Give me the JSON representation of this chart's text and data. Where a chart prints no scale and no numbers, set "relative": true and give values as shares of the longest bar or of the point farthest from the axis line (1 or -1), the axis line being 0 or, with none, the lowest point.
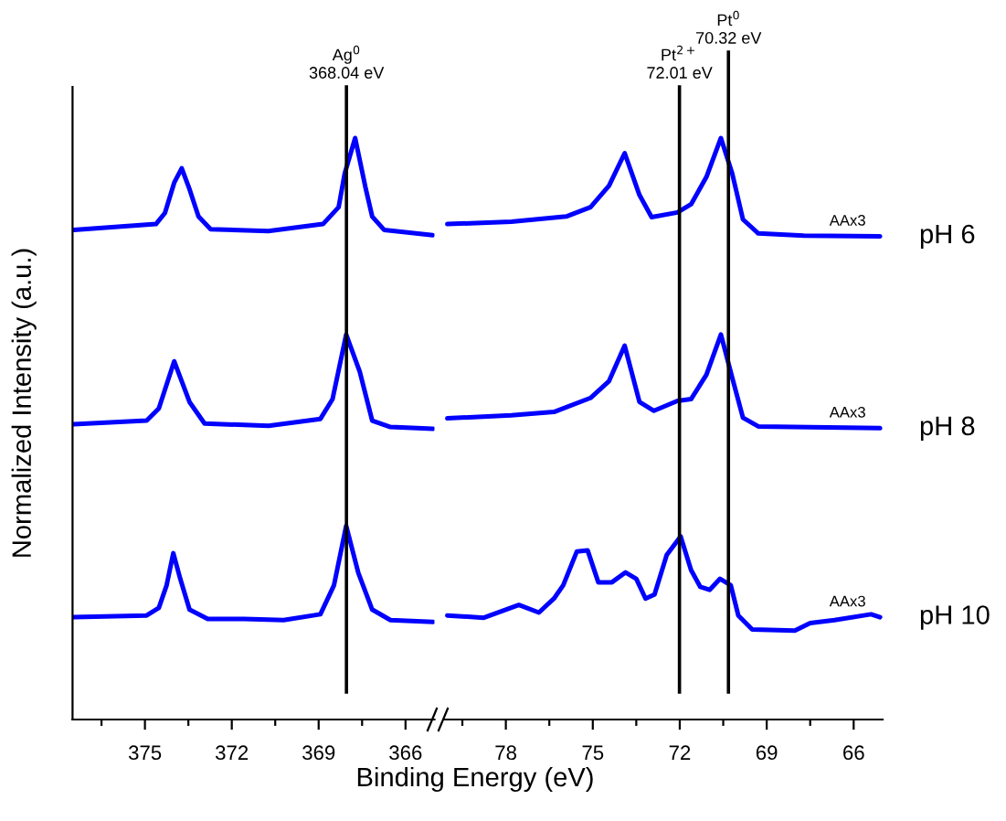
{
  "chart_data": [
    {
      "type": "line",
      "relative": true,
      "ylabel": "Normalized Intensity (a.u.)",
      "xlabel": "Binding Energy (eV)",
      "xlim": [
        377.5,
        365.0
      ],
      "xticks": [
        {
          "value": 376.5,
          "label": null
        },
        375,
        {
          "value": 373.5,
          "label": null
        },
        372,
        {
          "value": 370.5,
          "label": null
        },
        369,
        {
          "value": 367.5,
          "label": null
        },
        366
      ],
      "tick_labels": "x",
      "line_style": "solid",
      "legend": false,
      "grid": false,
      "ref_lines": [
        {
          "axis": "x",
          "value": 368.04,
          "label": "Ag$^{0}$\n368.04 eV",
          "color": "#000000"
        }
      ],
      "series": [
        {
          "color": "#0000ff",
          "x": [
            377.46,
            374.62,
            374.31,
            373.99,
            373.73,
            373.46,
            373.15,
            372.73,
            370.74,
            368.85,
            368.31,
            368.1,
            367.74,
            367.37,
            367.15,
            366.74,
            365.06
          ],
          "values": [
            0.842,
            0.852,
            0.871,
            0.923,
            0.948,
            0.912,
            0.865,
            0.843,
            0.84,
            0.852,
            0.881,
            0.939,
            1.0,
            0.912,
            0.865,
            0.842,
            0.833
          ]
        },
        {
          "color": "#0000ff",
          "x": [
            377.46,
            374.94,
            374.52,
            373.99,
            373.46,
            372.94,
            370.73,
            368.94,
            368.52,
            368.05,
            367.58,
            367.15,
            366.52,
            365.05
          ],
          "values": [
            0.508,
            0.514,
            0.535,
            0.616,
            0.546,
            0.509,
            0.505,
            0.517,
            0.551,
            0.662,
            0.598,
            0.514,
            0.503,
            0.5
          ]
        },
        {
          "color": "#0000ff",
          "x": [
            377.46,
            374.94,
            374.52,
            374.25,
            374.02,
            373.78,
            373.46,
            372.83,
            371.57,
            370.21,
            368.94,
            368.47,
            368.05,
            367.63,
            367.15,
            366.52,
            365.05
          ],
          "values": [
            0.176,
            0.179,
            0.192,
            0.231,
            0.286,
            0.242,
            0.189,
            0.173,
            0.173,
            0.171,
            0.181,
            0.231,
            0.333,
            0.252,
            0.189,
            0.171,
            0.168
          ]
        }
      ]
    },
    {
      "type": "line",
      "relative": true,
      "xlim": [
        80.1,
        65.0
      ],
      "xticks": [
        {
          "value": 79.5,
          "label": null
        },
        78,
        {
          "value": 76.5,
          "label": null
        },
        75,
        {
          "value": 73.5,
          "label": null
        },
        72,
        {
          "value": 70.5,
          "label": null
        },
        69,
        {
          "value": 67.5,
          "label": null
        },
        66
      ],
      "tick_labels": "x",
      "line_style": "solid",
      "legend": false,
      "grid": false,
      "ref_lines": [
        {
          "axis": "x",
          "value": 72.01,
          "label": "Pt$^{2+}$\n72.01 eV",
          "color": "#000000"
        },
        {
          "axis": "x",
          "value": 70.32,
          "label": "Pt$^{0}$\n70.32 eV",
          "color": "#000000"
        }
      ],
      "annotations": [
        "AAx3",
        "AAx3",
        "AAx3"
      ],
      "series": [
        {
          "name": "pH 6",
          "color": "#0000ff",
          "x": [
            80.02,
            77.81,
            75.92,
            75.08,
            74.44,
            73.9,
            73.39,
            72.97,
            72.08,
            71.61,
            71.08,
            70.58,
            70.19,
            69.82,
            69.29,
            67.72,
            65.09
          ],
          "values": [
            0.852,
            0.856,
            0.865,
            0.881,
            0.918,
            0.974,
            0.902,
            0.864,
            0.872,
            0.886,
            0.933,
            1.0,
            0.939,
            0.86,
            0.836,
            0.832,
            0.831
          ]
        },
        {
          "name": "pH 8",
          "color": "#0000ff",
          "x": [
            80.02,
            77.81,
            76.34,
            75.08,
            74.44,
            73.9,
            73.39,
            72.89,
            72.08,
            71.61,
            71.08,
            70.58,
            70.19,
            69.82,
            69.29,
            65.09
          ],
          "values": [
            0.518,
            0.523,
            0.529,
            0.553,
            0.582,
            0.643,
            0.546,
            0.531,
            0.548,
            0.551,
            0.593,
            0.662,
            0.588,
            0.519,
            0.504,
            0.501
          ]
        },
        {
          "name": "pH 10",
          "color": "#0000ff",
          "x": [
            80.02,
            78.76,
            77.55,
            76.86,
            76.34,
            76.02,
            75.55,
            75.18,
            74.81,
            74.34,
            73.87,
            73.5,
            73.18,
            72.87,
            72.45,
            71.97,
            71.61,
            71.29,
            70.97,
            70.61,
            70.24,
            69.98,
            69.5,
            68.03,
            67.5,
            66.66,
            65.4,
            65.09
          ],
          "values": [
            0.179,
            0.175,
            0.197,
            0.184,
            0.208,
            0.231,
            0.289,
            0.291,
            0.236,
            0.236,
            0.253,
            0.242,
            0.208,
            0.215,
            0.283,
            0.315,
            0.257,
            0.228,
            0.223,
            0.242,
            0.231,
            0.179,
            0.155,
            0.153,
            0.166,
            0.171,
            0.181,
            0.176
          ]
        }
      ]
    }
  ]
}
